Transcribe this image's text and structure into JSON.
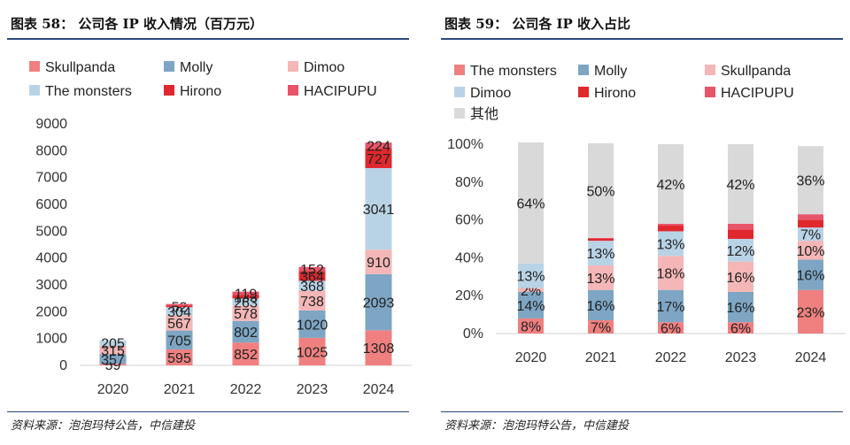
{
  "left": {
    "title": "图表 58：  公司各 IP 收入情况（百万元）",
    "source": "资料来源：泡泡玛特公告，中信建投"
  },
  "right": {
    "title": "图表 59：  公司各 IP 收入占比",
    "source": "资料来源：泡泡玛特公告，中信建投"
  },
  "chart_data": [
    {
      "type": "bar",
      "stacked": true,
      "title": "公司各 IP 收入情况（百万元）",
      "categories": [
        "2020",
        "2021",
        "2022",
        "2023",
        "2024"
      ],
      "yticks": [
        "0",
        "1000",
        "2000",
        "3000",
        "4000",
        "5000",
        "6000",
        "7000",
        "8000",
        "9000"
      ],
      "ylim": [
        0,
        9000
      ],
      "legend_position": "top",
      "series": [
        {
          "name": "Skullpanda",
          "color": "#f08080",
          "values": [
            59,
            595,
            852,
            1025,
            1308
          ]
        },
        {
          "name": "Molly",
          "color": "#7ea6c4",
          "values": [
            357,
            705,
            802,
            1020,
            2093
          ]
        },
        {
          "name": "Dimoo",
          "color": "#f4b6b6",
          "values": [
            315,
            567,
            578,
            738,
            910
          ]
        },
        {
          "name": "The monsters",
          "color": "#b9d3e6",
          "values": [
            205,
            304,
            263,
            368,
            3041
          ]
        },
        {
          "name": "Hirono",
          "color": "#e0282e",
          "values": [
            0,
            52,
            133,
            364,
            727
          ]
        },
        {
          "name": "HACIPUPU",
          "color": "#e8546a",
          "values": [
            0,
            64,
            119,
            152,
            224
          ]
        }
      ],
      "data_labels": [
        [
          "59",
          "357",
          "315",
          "205",
          "",
          ""
        ],
        [
          "595",
          "705",
          "567",
          "304",
          "52",
          ""
        ],
        [
          "852",
          "802",
          "578",
          "263",
          "133",
          "119"
        ],
        [
          "1025",
          "1020",
          "738",
          "368",
          "364",
          "152"
        ],
        [
          "1308",
          "2093",
          "910",
          "3041",
          "727",
          "224"
        ]
      ]
    },
    {
      "type": "bar",
      "stacked": true,
      "title": "公司各 IP 收入占比",
      "categories": [
        "2020",
        "2021",
        "2022",
        "2023",
        "2024"
      ],
      "yticks": [
        "0%",
        "20%",
        "40%",
        "60%",
        "80%",
        "100%"
      ],
      "ylim": [
        0,
        100
      ],
      "legend_position": "top",
      "series": [
        {
          "name": "The monsters",
          "color": "#f08080",
          "values": [
            8,
            7,
            6,
            6,
            23
          ]
        },
        {
          "name": "Molly",
          "color": "#7ea6c4",
          "values": [
            14,
            16,
            17,
            16,
            16
          ]
        },
        {
          "name": "Skullpanda",
          "color": "#f4b6b6",
          "values": [
            2,
            13,
            18,
            16,
            10
          ]
        },
        {
          "name": "Dimoo",
          "color": "#b9d3e6",
          "values": [
            13,
            13,
            13,
            12,
            7
          ]
        },
        {
          "name": "Hirono",
          "color": "#e0282e",
          "values": [
            0,
            1,
            3,
            5,
            4
          ]
        },
        {
          "name": "HACIPUPU",
          "color": "#e8546a",
          "values": [
            0,
            0.5,
            1,
            3,
            3
          ]
        },
        {
          "name": "其他",
          "color": "#d9d9d9",
          "values": [
            64,
            50,
            42,
            42,
            36
          ]
        }
      ],
      "data_labels": [
        [
          "8%",
          "14%",
          "2%",
          "13%",
          "",
          "",
          "64%"
        ],
        [
          "7%",
          "16%",
          "13%",
          "13%",
          "",
          "",
          "50%"
        ],
        [
          "6%",
          "17%",
          "18%",
          "13%",
          "",
          "",
          "42%"
        ],
        [
          "6%",
          "16%",
          "16%",
          "12%",
          "",
          "",
          "42%"
        ],
        [
          "23%",
          "16%",
          "10%",
          "7%",
          "",
          "",
          "36%"
        ]
      ]
    }
  ]
}
